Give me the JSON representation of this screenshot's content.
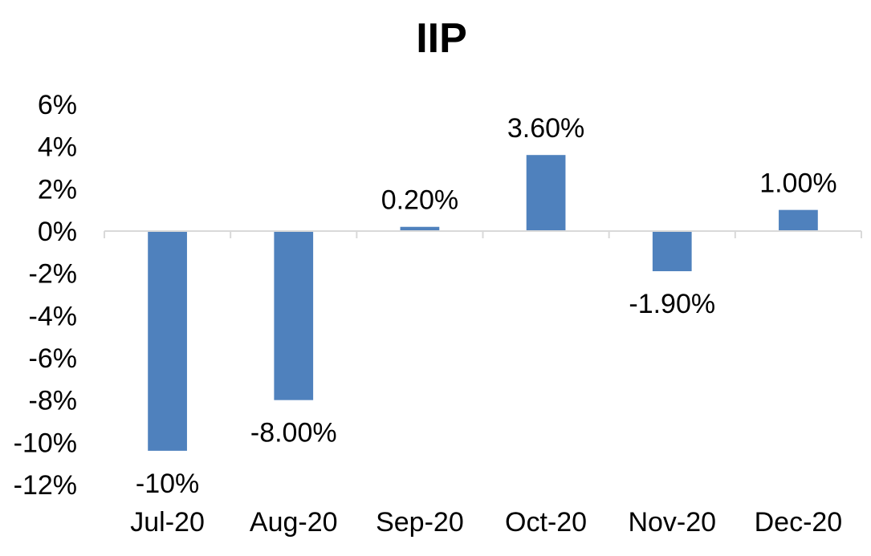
{
  "chart_data": {
    "type": "bar",
    "title": "IIP",
    "xlabel": "",
    "ylabel": "",
    "categories": [
      "Jul-20",
      "Aug-20",
      "Sep-20",
      "Oct-20",
      "Nov-20",
      "Dec-20"
    ],
    "values": [
      -10.4,
      -8.0,
      0.2,
      3.6,
      -1.9,
      1.0
    ],
    "data_labels": [
      "-10%",
      "-8.00%",
      "0.20%",
      "3.60%",
      "-1.90%",
      "1.00%"
    ],
    "ylim": [
      -12,
      6
    ],
    "ytick_values": [
      6,
      4,
      2,
      0,
      -2,
      -4,
      -6,
      -8,
      -10,
      -12
    ],
    "ytick_labels": [
      "6%",
      "4%",
      "2%",
      "0%",
      "-2%",
      "-4%",
      "-6%",
      "-8%",
      "-10%",
      "-12%"
    ],
    "bar_color": "#4F81BD",
    "grid": false,
    "legend": "none"
  }
}
